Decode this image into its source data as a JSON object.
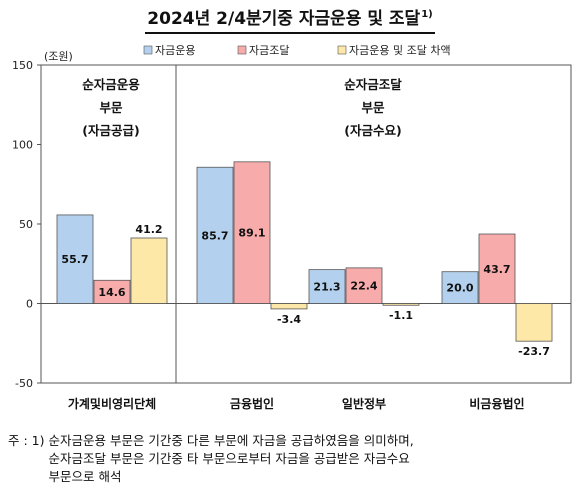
{
  "title": "2024년 2/4분기중 자금운용 및 조달",
  "title_footnote": "1)",
  "chart_data": {
    "type": "bar",
    "ylabel": "(조원)",
    "ylim": [
      -50,
      150
    ],
    "yticks": [
      -50,
      0,
      50,
      100,
      150
    ],
    "categories": [
      "가계및비영리단체",
      "금융법인",
      "일반정부",
      "비금융법인"
    ],
    "series": [
      {
        "name": "자금운용",
        "color": "#b3d1ee",
        "values": [
          55.7,
          85.7,
          21.3,
          20.0
        ],
        "labels": [
          "55.7",
          "85.7",
          "21.3",
          "20.0"
        ]
      },
      {
        "name": "자금조달",
        "color": "#f7abab",
        "values": [
          14.6,
          89.1,
          22.4,
          43.7
        ],
        "labels": [
          "14.6",
          "89.1",
          "22.4",
          "43.7"
        ]
      },
      {
        "name": "자금운용 및 조달 차액",
        "color": "#fde8a8",
        "values": [
          41.2,
          -3.4,
          -1.1,
          -23.7
        ],
        "labels": [
          "41.2",
          "-3.4",
          "-1.1",
          "-23.7"
        ]
      }
    ],
    "annotations": [
      {
        "lines": [
          "순자금운용",
          "부문",
          "(자금공급)"
        ]
      },
      {
        "lines": [
          "순자금조달",
          "부문",
          "(자금수요)"
        ]
      }
    ],
    "grid": false,
    "legend_position": "top"
  },
  "note": {
    "prefix": "주 : 1) ",
    "lines": [
      "순자금운용 부문은 기간중 다른 부문에 자금을 공급하였음을 의미하며,",
      "순자금조달 부문은 기간중 타 부문으로부터 자금을 공급받은 자금수요",
      "부문으로 해석"
    ]
  }
}
